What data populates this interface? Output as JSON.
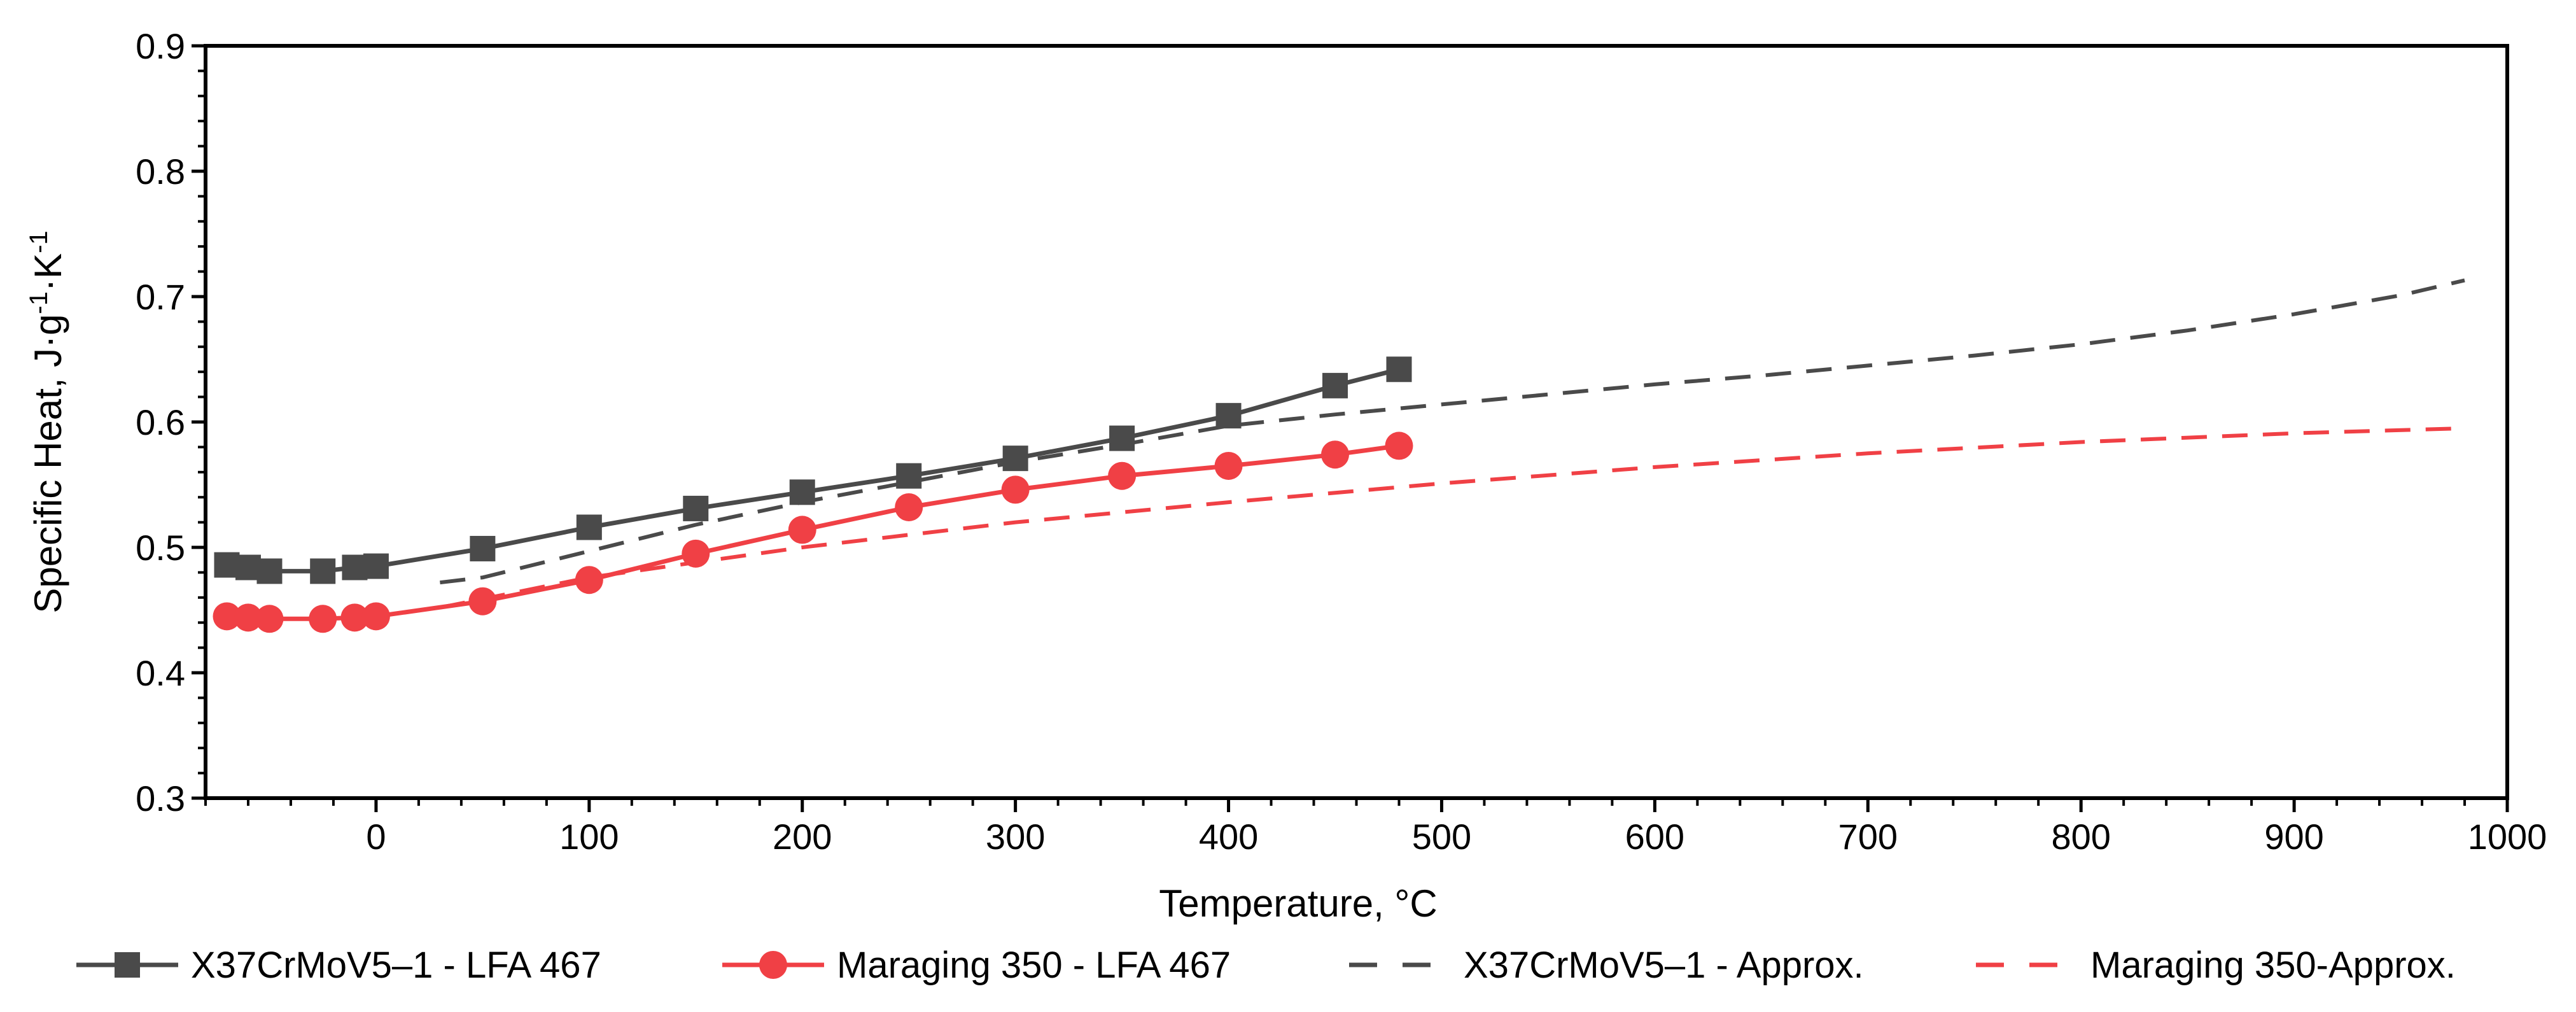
{
  "chart_data": {
    "type": "line",
    "title": "",
    "xlabel": "Temperature, °C",
    "ylabel": {
      "base": "Specific Heat, J·g",
      "sup1": "-1",
      "mid": "·K",
      "sup2": "-1"
    },
    "xlim": [
      -80,
      1000
    ],
    "ylim": [
      0.3,
      0.9
    ],
    "x_ticks": [
      0,
      100,
      200,
      300,
      400,
      500,
      600,
      700,
      800,
      900,
      1000
    ],
    "x_tick_labels": [
      "0",
      "100",
      "200",
      "300",
      "400",
      "500",
      "600",
      "700",
      "800",
      "900",
      "1000"
    ],
    "y_ticks": [
      0.3,
      0.4,
      0.5,
      0.6,
      0.7,
      0.8,
      0.9
    ],
    "y_tick_labels": [
      "0.3",
      "0.4",
      "0.5",
      "0.6",
      "0.7",
      "0.8",
      "0.9"
    ],
    "grid": false,
    "legend_position": "bottom",
    "series": [
      {
        "name": "X37CrMoV5–1 - LFA 467",
        "style": "solid",
        "marker": "square",
        "color": "#4a4a4a",
        "x": [
          -70,
          -60,
          -50,
          -25,
          -10,
          0,
          50,
          100,
          150,
          200,
          250,
          300,
          350,
          400,
          450,
          480
        ],
        "y": [
          0.486,
          0.484,
          0.481,
          0.481,
          0.484,
          0.485,
          0.499,
          0.516,
          0.531,
          0.544,
          0.557,
          0.571,
          0.587,
          0.605,
          0.629,
          0.642
        ]
      },
      {
        "name": "Maraging 350 - LFA 467",
        "style": "solid",
        "marker": "circle",
        "color": "#f04045",
        "x": [
          -70,
          -60,
          -50,
          -25,
          -10,
          0,
          50,
          100,
          150,
          200,
          250,
          300,
          350,
          400,
          450,
          480
        ],
        "y": [
          0.445,
          0.444,
          0.443,
          0.443,
          0.444,
          0.445,
          0.457,
          0.474,
          0.495,
          0.514,
          0.532,
          0.546,
          0.557,
          0.565,
          0.574,
          0.581
        ]
      },
      {
        "name": "X37CrMoV5–1 - Approx.",
        "style": "dashed",
        "marker": "none",
        "color": "#4a4a4a",
        "x": [
          30,
          50,
          100,
          150,
          200,
          250,
          300,
          350,
          400,
          450,
          500,
          550,
          600,
          650,
          700,
          750,
          800,
          850,
          900,
          950,
          980
        ],
        "y": [
          0.472,
          0.476,
          0.497,
          0.518,
          0.536,
          0.552,
          0.568,
          0.582,
          0.597,
          0.606,
          0.614,
          0.622,
          0.63,
          0.637,
          0.645,
          0.653,
          0.662,
          0.673,
          0.686,
          0.701,
          0.713
        ]
      },
      {
        "name": "Maraging 350-Approx.",
        "style": "dashed",
        "marker": "none",
        "color": "#f04045",
        "x": [
          30,
          100,
          200,
          300,
          400,
          500,
          600,
          700,
          800,
          900,
          980
        ],
        "y": [
          0.452,
          0.476,
          0.5,
          0.52,
          0.536,
          0.551,
          0.564,
          0.575,
          0.584,
          0.591,
          0.595
        ]
      }
    ]
  }
}
